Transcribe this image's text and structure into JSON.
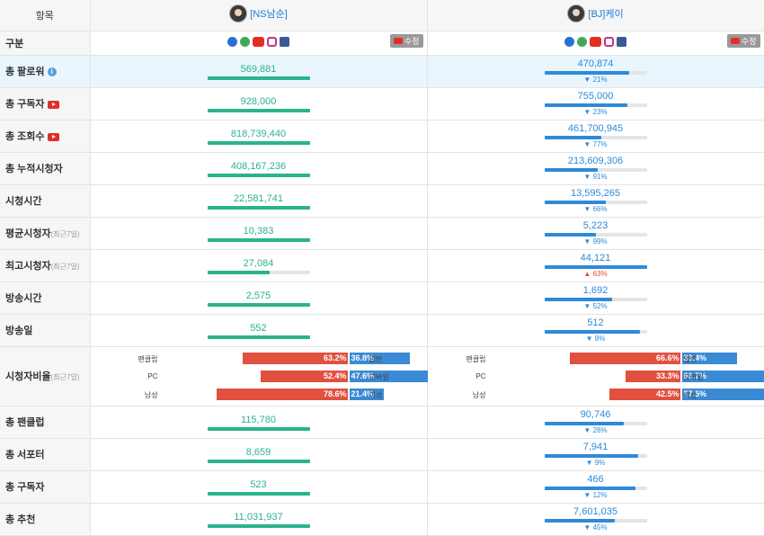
{
  "header": {
    "item_label": "항목",
    "channel_a": "[NS남순]",
    "channel_b": "[BJ]케이"
  },
  "platform_row": {
    "label": "구분",
    "edit_label": "수정",
    "icons": [
      "afreeca-icon",
      "naver-icon",
      "youtube-icon",
      "instagram-icon",
      "facebook-icon"
    ]
  },
  "colors": {
    "green": "#2bb38e",
    "blue": "#2e8ad8",
    "red": "#e2503f",
    "highlight": "#eaf6fd"
  },
  "stats": [
    {
      "label": "총 팔로워",
      "icon": "info-icon",
      "sub": "",
      "a": "569,881",
      "b": "470,874",
      "a_ratio": 1.0,
      "b_ratio": 0.83,
      "pct": "21%",
      "dir": "down",
      "highlight": true
    },
    {
      "label": "총 구독자",
      "icon": "youtube-icon",
      "sub": "",
      "a": "928,000",
      "b": "755,000",
      "a_ratio": 1.0,
      "b_ratio": 0.81,
      "pct": "23%",
      "dir": "down"
    },
    {
      "label": "총 조회수",
      "icon": "youtube-icon",
      "sub": "",
      "a": "818,739,440",
      "b": "461,700,945",
      "a_ratio": 1.0,
      "b_ratio": 0.56,
      "pct": "77%",
      "dir": "down"
    },
    {
      "label": "총 누적시청자",
      "icon": "",
      "sub": "",
      "a": "408,167,236",
      "b": "213,609,306",
      "a_ratio": 1.0,
      "b_ratio": 0.52,
      "pct": "91%",
      "dir": "down"
    },
    {
      "label": "시청시간",
      "icon": "",
      "sub": "",
      "a": "22,581,741",
      "b": "13,595,265",
      "a_ratio": 1.0,
      "b_ratio": 0.6,
      "pct": "66%",
      "dir": "down"
    },
    {
      "label": "평균시청자",
      "icon": "",
      "sub": "(최근7일)",
      "a": "10,383",
      "b": "5,223",
      "a_ratio": 1.0,
      "b_ratio": 0.5,
      "pct": "99%",
      "dir": "down"
    },
    {
      "label": "최고시청자",
      "icon": "",
      "sub": "(최근7일)",
      "a": "27,084",
      "b": "44,121",
      "a_ratio": 0.61,
      "b_ratio": 1.0,
      "pct": "63%",
      "dir": "up"
    },
    {
      "label": "방송시간",
      "icon": "",
      "sub": "",
      "a": "2,575",
      "b": "1,692",
      "a_ratio": 1.0,
      "b_ratio": 0.66,
      "pct": "52%",
      "dir": "down"
    },
    {
      "label": "방송일",
      "icon": "",
      "sub": "",
      "a": "552",
      "b": "512",
      "a_ratio": 1.0,
      "b_ratio": 0.93,
      "pct": "8%",
      "dir": "down"
    }
  ],
  "ratio": {
    "label": "시청자비율",
    "sub": "(최근7일)",
    "rows_a": [
      {
        "left": "팬클럽",
        "right": "일반",
        "red": "63.2%",
        "blue": "36.8%",
        "red_frac": 0.632
      },
      {
        "left": "PC",
        "right": "모바일",
        "red": "52.4%",
        "blue": "47.6%",
        "red_frac": 0.524
      },
      {
        "left": "남성",
        "right": "여성",
        "red": "78.6%",
        "blue": "21.4%",
        "red_frac": 0.786
      }
    ],
    "rows_b": [
      {
        "left": "팬클럽",
        "right": "일반",
        "red": "66.6%",
        "blue": "33.4%",
        "red_frac": 0.666
      },
      {
        "left": "PC",
        "right": "모바일",
        "red": "33.3%",
        "blue": "66.7%",
        "red_frac": 0.333
      },
      {
        "left": "남성",
        "right": "여성",
        "red": "42.5%",
        "blue": "57.5%",
        "red_frac": 0.425
      }
    ]
  },
  "stats2": [
    {
      "label": "총 팬클럽",
      "a": "115,780",
      "b": "90,746",
      "a_ratio": 1.0,
      "b_ratio": 0.78,
      "pct": "28%",
      "dir": "down"
    },
    {
      "label": "총 서포터",
      "a": "8,659",
      "b": "7,941",
      "a_ratio": 1.0,
      "b_ratio": 0.92,
      "pct": "9%",
      "dir": "down"
    },
    {
      "label": "총 구독자",
      "a": "523",
      "b": "466",
      "a_ratio": 1.0,
      "b_ratio": 0.89,
      "pct": "12%",
      "dir": "down"
    },
    {
      "label": "총 추천",
      "a": "11,031,937",
      "b": "7,601,035",
      "a_ratio": 1.0,
      "b_ratio": 0.69,
      "pct": "45%",
      "dir": "down"
    }
  ]
}
